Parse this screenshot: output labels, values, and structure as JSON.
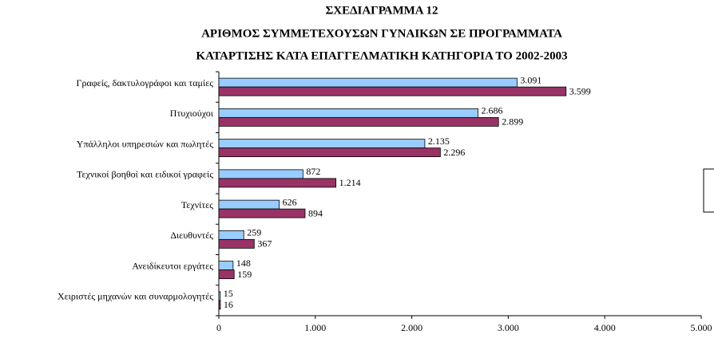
{
  "chart_data": {
    "type": "bar",
    "orientation": "horizontal",
    "title": [
      "ΣΧΕΔΙΑΓΡΑΜΜΑ 12",
      "ΑΡΙΘΜΟΣ ΣΥΜΜΕΤΕΧΟΥΣΩΝ ΓΥΝΑΙΚΩΝ ΣΕ ΠΡΟΓΡΑΜΜΑΤΑ",
      "ΚΑΤΑΡΤΙΣΗΣ ΚΑΤΑ ΕΠΑΓΓΕΛΜΑΤΙΚΗ ΚΑΤΗΓΟΡΙΑ ΤΟ 2002-2003"
    ],
    "categories": [
      "Γραφείς, δακτυλογράφοι και ταμίες",
      "Πτυχιούχοι",
      "Υπάλληλοι υπηρεσιών και πωλητές",
      "Τεχνικοί βοηθοί και ειδικοί γραφείς",
      "Τεχνίτες",
      "Διευθυντές",
      "Ανειδίκευτοι εργάτες",
      "Χειριστές μηχανών και συναρμολογητές"
    ],
    "series": [
      {
        "color": "#99ccff",
        "values": [
          3091,
          2686,
          2135,
          872,
          626,
          259,
          148,
          15
        ],
        "value_labels": [
          "3.091",
          "2.686",
          "2.135",
          "872",
          "626",
          "259",
          "148",
          "15"
        ]
      },
      {
        "color": "#993366",
        "values": [
          3599,
          2899,
          2296,
          1214,
          894,
          367,
          159,
          16
        ],
        "value_labels": [
          "3.599",
          "2.899",
          "2.296",
          "1.214",
          "894",
          "367",
          "159",
          "16"
        ]
      }
    ],
    "xlim": [
      0,
      5000
    ],
    "xticks": [
      0,
      {
        "value": 1000,
        "label": "1.000"
      },
      {
        "value": 2000,
        "label": "2.000"
      },
      {
        "value": 3000,
        "label": "3.000"
      },
      {
        "value": 4000,
        "label": "4.000"
      },
      {
        "value": 5000,
        "label": "5.000"
      }
    ]
  }
}
